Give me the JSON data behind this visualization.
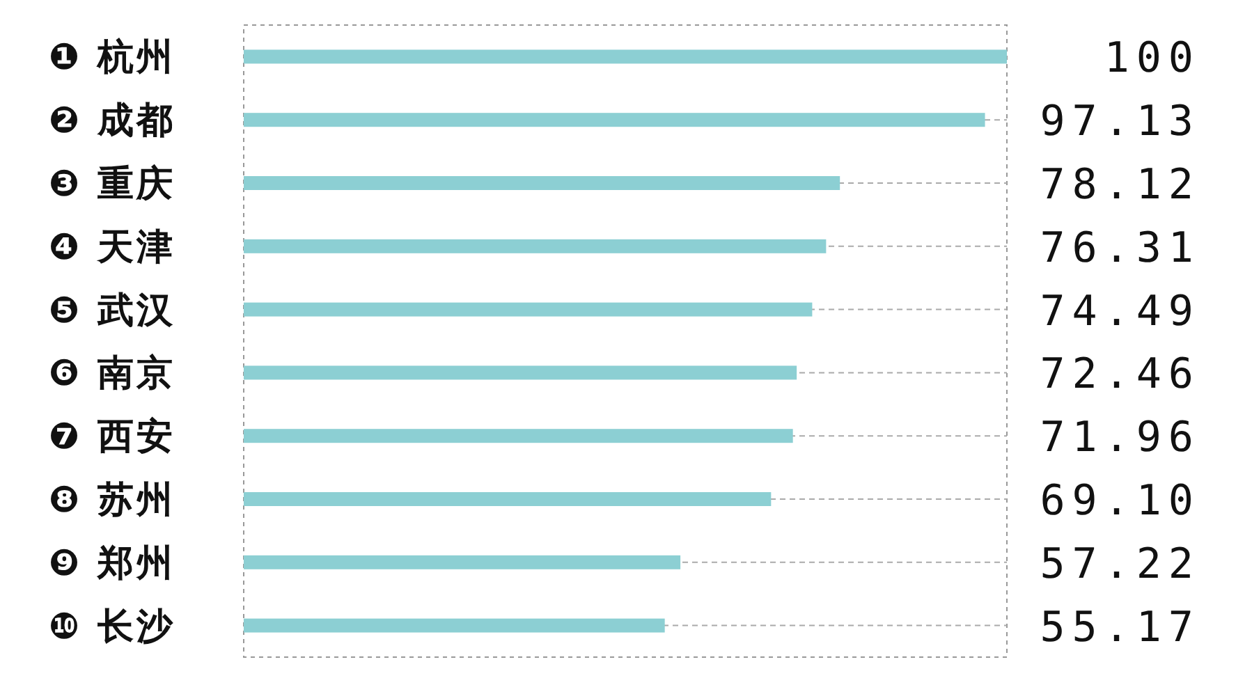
{
  "chart_data": {
    "type": "bar",
    "orientation": "horizontal",
    "categories": [
      "❶ 杭州",
      "❷ 成都",
      "❸ 重庆",
      "❹ 天津",
      "❺ 武汉",
      "❻ 南京",
      "❼ 西安",
      "❽ 苏州",
      "❾ 郑州",
      "❿ 长沙"
    ],
    "values": [
      100,
      97.13,
      78.12,
      76.31,
      74.49,
      72.46,
      71.96,
      69.1,
      57.22,
      55.17
    ],
    "value_labels": [
      "100",
      "97.13",
      "78.12",
      "76.31",
      "74.49",
      "72.46",
      "71.96",
      "69.10",
      "57.22",
      "55.17"
    ],
    "color": "#8ccfd3",
    "grid": "y"
  }
}
